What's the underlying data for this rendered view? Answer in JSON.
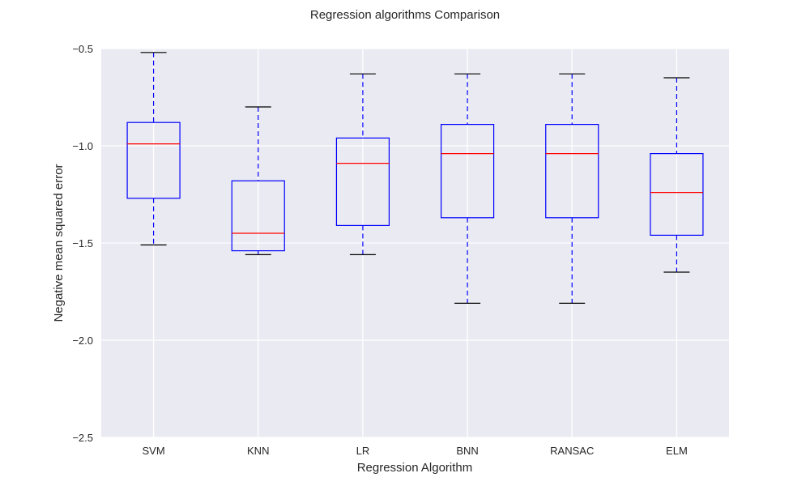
{
  "chart_data": {
    "type": "box",
    "title": "Regression algorithms Comparison",
    "xlabel": "Regression Algorithm",
    "ylabel": "Negative mean squared error",
    "ylim": [
      -2.5,
      -0.5
    ],
    "yticks": [
      -2.5,
      -2.0,
      -1.5,
      -1.0,
      -0.5
    ],
    "ytick_labels": [
      "−2.5",
      "−2.0",
      "−1.5",
      "−1.0",
      "−0.5"
    ],
    "grid": true,
    "categories": [
      "SVM",
      "KNN",
      "LR",
      "BNN",
      "RANSAC",
      "ELM"
    ],
    "boxes": [
      {
        "label": "SVM",
        "whisker_low": -1.51,
        "q1": -1.27,
        "median": -0.99,
        "q3": -0.88,
        "whisker_high": -0.52
      },
      {
        "label": "KNN",
        "whisker_low": -1.56,
        "q1": -1.54,
        "median": -1.45,
        "q3": -1.18,
        "whisker_high": -0.8
      },
      {
        "label": "LR",
        "whisker_low": -1.56,
        "q1": -1.41,
        "median": -1.09,
        "q3": -0.96,
        "whisker_high": -0.63
      },
      {
        "label": "BNN",
        "whisker_low": -1.81,
        "q1": -1.37,
        "median": -1.04,
        "q3": -0.89,
        "whisker_high": -0.63
      },
      {
        "label": "RANSAC",
        "whisker_low": -1.81,
        "q1": -1.37,
        "median": -1.04,
        "q3": -0.89,
        "whisker_high": -0.63
      },
      {
        "label": "ELM",
        "whisker_low": -1.65,
        "q1": -1.46,
        "median": -1.24,
        "q3": -1.04,
        "whisker_high": -0.65
      }
    ],
    "colors": {
      "plot_background": "#eaeaf2",
      "grid": "#ffffff",
      "box": "#0000ff",
      "median": "#ff0000",
      "whisker": "#0000ff",
      "cap": "#000000"
    }
  }
}
